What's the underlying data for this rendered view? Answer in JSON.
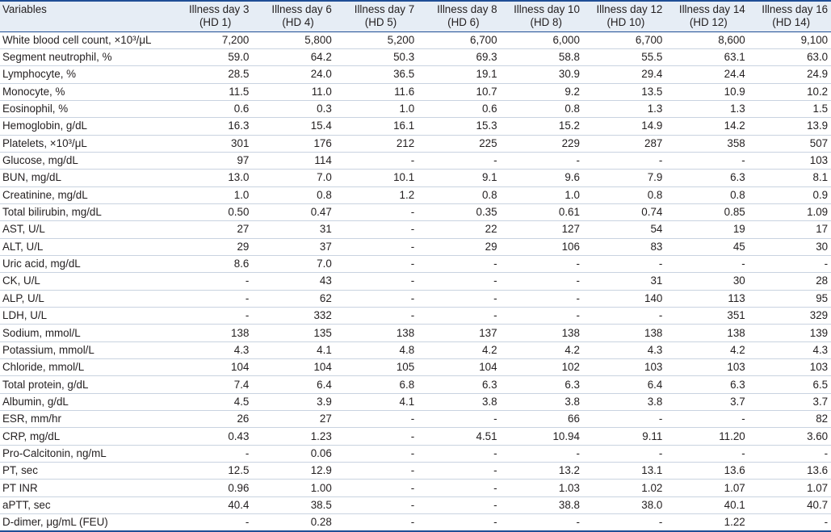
{
  "table": {
    "columns": [
      {
        "label": "Illness day 3",
        "sub": "(HD 1)"
      },
      {
        "label": "Illness day 6",
        "sub": "(HD 4)"
      },
      {
        "label": "Illness day 7",
        "sub": "(HD 5)"
      },
      {
        "label": "Illness day 8",
        "sub": "(HD 6)"
      },
      {
        "label": "Illness day 10",
        "sub": "(HD 8)"
      },
      {
        "label": "Illness day 12",
        "sub": "(HD 10)"
      },
      {
        "label": "Illness day 14",
        "sub": "(HD 12)"
      },
      {
        "label": "Illness day 16",
        "sub": "(HD 14)"
      }
    ],
    "variable_header": "Variables",
    "rows": [
      {
        "name": "White blood cell count, ×10³/μL",
        "values": [
          "7,200",
          "5,800",
          "5,200",
          "6,700",
          "6,000",
          "6,700",
          "8,600",
          "9,100"
        ]
      },
      {
        "name": "Segment neutrophil, %",
        "values": [
          "59.0",
          "64.2",
          "50.3",
          "69.3",
          "58.8",
          "55.5",
          "63.1",
          "63.0"
        ]
      },
      {
        "name": "Lymphocyte, %",
        "values": [
          "28.5",
          "24.0",
          "36.5",
          "19.1",
          "30.9",
          "29.4",
          "24.4",
          "24.9"
        ]
      },
      {
        "name": "Monocyte, %",
        "values": [
          "11.5",
          "11.0",
          "11.6",
          "10.7",
          "9.2",
          "13.5",
          "10.9",
          "10.2"
        ]
      },
      {
        "name": "Eosinophil, %",
        "values": [
          "0.6",
          "0.3",
          "1.0",
          "0.6",
          "0.8",
          "1.3",
          "1.3",
          "1.5"
        ]
      },
      {
        "name": "Hemoglobin, g/dL",
        "values": [
          "16.3",
          "15.4",
          "16.1",
          "15.3",
          "15.2",
          "14.9",
          "14.2",
          "13.9"
        ]
      },
      {
        "name": "Platelets, ×10³/μL",
        "values": [
          "301",
          "176",
          "212",
          "225",
          "229",
          "287",
          "358",
          "507"
        ]
      },
      {
        "name": "Glucose, mg/dL",
        "values": [
          "97",
          "114",
          "-",
          "-",
          "-",
          "-",
          "-",
          "103"
        ]
      },
      {
        "name": "BUN, mg/dL",
        "values": [
          "13.0",
          "7.0",
          "10.1",
          "9.1",
          "9.6",
          "7.9",
          "6.3",
          "8.1"
        ]
      },
      {
        "name": "Creatinine, mg/dL",
        "values": [
          "1.0",
          "0.8",
          "1.2",
          "0.8",
          "1.0",
          "0.8",
          "0.8",
          "0.9"
        ]
      },
      {
        "name": "Total bilirubin, mg/dL",
        "values": [
          "0.50",
          "0.47",
          "-",
          "0.35",
          "0.61",
          "0.74",
          "0.85",
          "1.09"
        ]
      },
      {
        "name": "AST, U/L",
        "values": [
          "27",
          "31",
          "-",
          "22",
          "127",
          "54",
          "19",
          "17"
        ]
      },
      {
        "name": "ALT, U/L",
        "values": [
          "29",
          "37",
          "-",
          "29",
          "106",
          "83",
          "45",
          "30"
        ]
      },
      {
        "name": "Uric acid, mg/dL",
        "values": [
          "8.6",
          "7.0",
          "-",
          "-",
          "-",
          "-",
          "-",
          "-"
        ]
      },
      {
        "name": "CK, U/L",
        "values": [
          "-",
          "43",
          "-",
          "-",
          "-",
          "31",
          "30",
          "28"
        ]
      },
      {
        "name": "ALP, U/L",
        "values": [
          "-",
          "62",
          "-",
          "-",
          "-",
          "140",
          "113",
          "95"
        ]
      },
      {
        "name": "LDH, U/L",
        "values": [
          "-",
          "332",
          "-",
          "-",
          "-",
          "-",
          "351",
          "329"
        ]
      },
      {
        "name": "Sodium, mmol/L",
        "values": [
          "138",
          "135",
          "138",
          "137",
          "138",
          "138",
          "138",
          "139"
        ]
      },
      {
        "name": "Potassium, mmol/L",
        "values": [
          "4.3",
          "4.1",
          "4.8",
          "4.2",
          "4.2",
          "4.3",
          "4.2",
          "4.3"
        ]
      },
      {
        "name": "Chloride, mmol/L",
        "values": [
          "104",
          "104",
          "105",
          "104",
          "102",
          "103",
          "103",
          "103"
        ]
      },
      {
        "name": "Total protein, g/dL",
        "values": [
          "7.4",
          "6.4",
          "6.8",
          "6.3",
          "6.3",
          "6.4",
          "6.3",
          "6.5"
        ]
      },
      {
        "name": "Albumin, g/dL",
        "values": [
          "4.5",
          "3.9",
          "4.1",
          "3.8",
          "3.8",
          "3.8",
          "3.7",
          "3.7"
        ]
      },
      {
        "name": "ESR, mm/hr",
        "values": [
          "26",
          "27",
          "-",
          "-",
          "66",
          "-",
          "-",
          "82"
        ]
      },
      {
        "name": "CRP, mg/dL",
        "values": [
          "0.43",
          "1.23",
          "-",
          "4.51",
          "10.94",
          "9.11",
          "11.20",
          "3.60"
        ]
      },
      {
        "name": "Pro-Calcitonin, ng/mL",
        "values": [
          "-",
          "0.06",
          "-",
          "-",
          "-",
          "-",
          "-",
          "-"
        ]
      },
      {
        "name": "PT, sec",
        "values": [
          "12.5",
          "12.9",
          "-",
          "-",
          "13.2",
          "13.1",
          "13.6",
          "13.6"
        ]
      },
      {
        "name": "PT INR",
        "values": [
          "0.96",
          "1.00",
          "-",
          "-",
          "1.03",
          "1.02",
          "1.07",
          "1.07"
        ]
      },
      {
        "name": "aPTT, sec",
        "values": [
          "40.4",
          "38.5",
          "-",
          "-",
          "38.8",
          "38.0",
          "40.1",
          "40.7"
        ]
      },
      {
        "name": "D-dimer, μg/mL (FEU)",
        "values": [
          "-",
          "0.28",
          "-",
          "-",
          "-",
          "-",
          "1.22",
          "-"
        ]
      }
    ]
  },
  "colors": {
    "rule": "#1f4e96",
    "header_bg": "#e6edf5",
    "row_rule": "#c9d3e0",
    "text": "#231f20"
  }
}
